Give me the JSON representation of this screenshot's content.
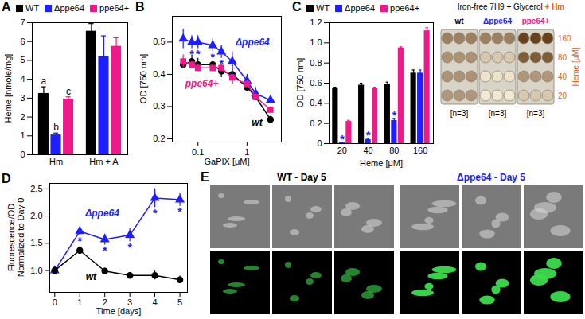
{
  "chart_data": [
    {
      "panel": "A",
      "type": "bar",
      "ylabel": "Heme [nmole/mg]",
      "categories": [
        "Hm",
        "Hm + A"
      ],
      "ylim": [
        0,
        7
      ],
      "yticks": [
        0,
        1,
        2,
        3,
        4,
        5,
        6,
        7
      ],
      "legend": "top",
      "series": [
        {
          "name": "WT",
          "color": "#000000",
          "values": [
            3.25,
            6.55
          ],
          "errors": [
            0.35,
            0.4
          ],
          "letters": [
            "a",
            null
          ]
        },
        {
          "name": "Δppe64",
          "color": "#1e1eff",
          "values": [
            1.05,
            5.2
          ],
          "errors": [
            0.1,
            1.1
          ],
          "letters": [
            "b",
            null
          ]
        },
        {
          "name": "ppe64+",
          "color": "#ee1a8a",
          "values": [
            2.95,
            5.75
          ],
          "errors": [
            0.12,
            0.45
          ],
          "letters": [
            "c",
            null
          ]
        }
      ]
    },
    {
      "panel": "B",
      "type": "line",
      "log": "x",
      "xlabel": "GaPIX [μM]",
      "ylabel": "OD [750 nm]",
      "x": [
        0.05,
        0.075,
        0.1,
        0.2,
        0.3,
        0.5,
        1,
        1.5,
        3
      ],
      "xlim": [
        0.03,
        5
      ],
      "xticks": [
        0.1,
        1
      ],
      "ylim": [
        0.19,
        0.58
      ],
      "yticks": [
        0.2,
        0.3,
        0.4,
        0.5
      ],
      "significance_label": "*",
      "series": [
        {
          "name": "wt",
          "color": "#000000",
          "marker": "circle",
          "values": [
            0.43,
            0.44,
            0.43,
            0.43,
            0.41,
            0.4,
            0.36,
            0.33,
            0.26
          ],
          "errors": [
            0.01,
            0.02,
            0.02,
            0.01,
            0.02,
            0.03,
            0.01,
            0.01,
            0.01
          ],
          "label_at": [
            1.6,
            0.25
          ]
        },
        {
          "name": "Δppe64",
          "color": "#1e1eff",
          "marker": "triangle",
          "values": [
            0.51,
            0.5,
            0.5,
            0.49,
            0.47,
            0.44,
            0.38,
            0.34,
            0.32
          ],
          "errors": [
            0.03,
            0.02,
            0.02,
            0.02,
            0.02,
            0.03,
            0.02,
            0.02,
            0.01
          ],
          "significant": [
            false,
            true,
            true,
            true,
            true,
            true,
            false,
            false,
            false
          ],
          "label_at": [
            1.3,
            0.5
          ]
        },
        {
          "name": "ppe64+",
          "color": "#ee1a8a",
          "marker": "square",
          "values": [
            0.44,
            0.43,
            0.42,
            0.42,
            0.42,
            0.39,
            0.37,
            0.33,
            0.29
          ],
          "errors": [
            0.02,
            0.01,
            0.01,
            0.01,
            0.01,
            0.01,
            0.01,
            0.01,
            0.01
          ],
          "label_at": [
            0.12,
            0.37
          ]
        }
      ]
    },
    {
      "panel": "C",
      "type": "bar",
      "xlabel": "Heme [μM]",
      "ylabel": "OD [750 nm]",
      "categories": [
        "20",
        "40",
        "80",
        "160"
      ],
      "ylim": [
        0,
        1.2
      ],
      "yticks": [
        0,
        0.2,
        0.4,
        0.6,
        0.8,
        {
          "value": 1,
          "label": "1.0"
        },
        1.2
      ],
      "legend": "top",
      "significance_label": "*",
      "series": [
        {
          "name": "WT",
          "color": "#000000",
          "values": [
            0.55,
            0.58,
            0.59,
            0.7
          ],
          "errors": [
            0.01,
            0.02,
            0.02,
            0.03
          ]
        },
        {
          "name": "Δppe64",
          "color": "#1e1eff",
          "values": [
            0.01,
            0.04,
            0.23,
            0.7
          ],
          "errors": [
            0.005,
            0.01,
            0.02,
            0.03
          ],
          "significant": [
            true,
            true,
            true,
            false
          ]
        },
        {
          "name": "ppe64+",
          "color": "#ee1a8a",
          "values": [
            0.22,
            0.55,
            0.95,
            1.12
          ],
          "errors": [
            0.01,
            0.01,
            0.01,
            0.03
          ]
        }
      ]
    },
    {
      "panel": "D",
      "type": "line",
      "xlabel": "Time [days]",
      "ylabel": "Fluorescence/OD Normalized to Day 0",
      "x": [
        0,
        1,
        2,
        3,
        4,
        5
      ],
      "xlim": [
        -0.2,
        5.3
      ],
      "xticks": [
        0,
        1,
        2,
        3,
        4,
        5
      ],
      "ylim": [
        0.6,
        2.6
      ],
      "yticks": [
        {
          "value": 1,
          "label": "1.0"
        },
        1.5,
        {
          "value": 2,
          "label": "2.0"
        },
        2.5
      ],
      "significance_label": "*",
      "series": [
        {
          "name": "Δppe64",
          "color": "#1e1eff",
          "marker": "triangle",
          "values": [
            1.0,
            1.72,
            1.57,
            1.65,
            2.33,
            2.3
          ],
          "errors": [
            0,
            0.08,
            0.1,
            0.12,
            0.17,
            0.12
          ],
          "significant": [
            false,
            true,
            true,
            true,
            true,
            true
          ],
          "label_at": [
            1.9,
            2.05
          ]
        },
        {
          "name": "wt",
          "color": "#000000",
          "marker": "circle",
          "values": [
            1.0,
            1.37,
            0.99,
            0.91,
            0.91,
            0.83
          ],
          "errors": [
            0,
            0.07,
            0.05,
            0.05,
            0.08,
            0.07
          ],
          "label_at": [
            1.45,
            0.88
          ]
        }
      ]
    }
  ],
  "plate": {
    "title": "Iron-free 7H9 + Glycerol",
    "title_suffix": "+ Hm",
    "groups": [
      "wt",
      "Δppe64",
      "ppe64+"
    ],
    "group_note": "[n=3]",
    "rows": [
      "160",
      "80",
      "40",
      "20"
    ],
    "rows_label": "Heme [μM]"
  },
  "micrographs": {
    "panel": "E",
    "groups": [
      {
        "title": "WT - Day 5",
        "color": "#000000"
      },
      {
        "title": "Δppe64 - Day 5",
        "color": "#1e1eff"
      }
    ]
  }
}
